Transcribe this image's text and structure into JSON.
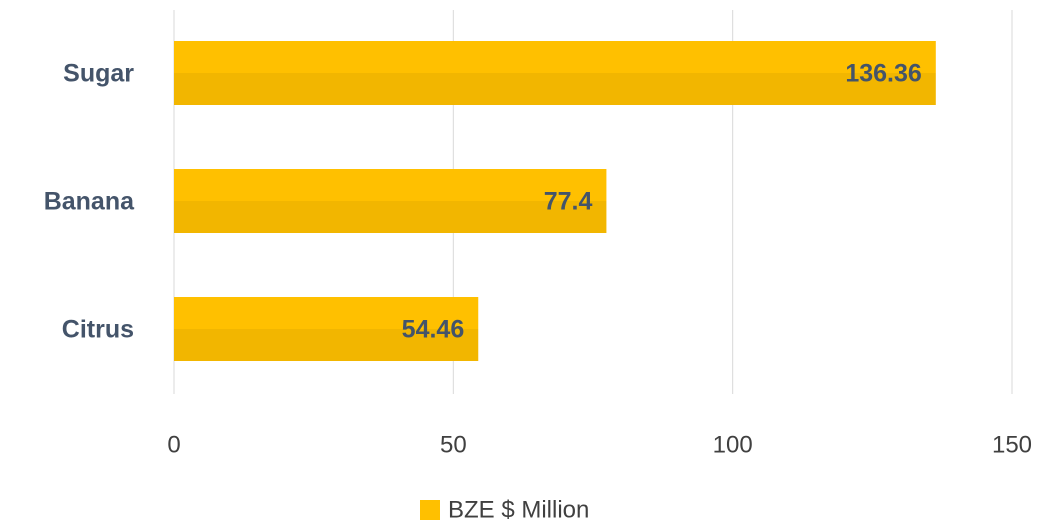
{
  "chart_data": {
    "type": "bar",
    "orientation": "horizontal",
    "categories": [
      "Sugar",
      "Banana",
      "Citrus"
    ],
    "series": [
      {
        "name": "BZE $ Million",
        "color": "#ffc000",
        "values": [
          136.36,
          77.4,
          54.46
        ]
      }
    ],
    "xlim": [
      0,
      150
    ],
    "xticks": [
      0,
      50,
      100,
      150
    ],
    "grid": true,
    "legend": "bottom"
  }
}
